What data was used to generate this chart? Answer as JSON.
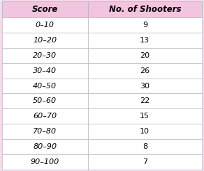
{
  "headers": [
    "Score",
    "No. of Shooters"
  ],
  "rows": [
    [
      "0–10",
      "9"
    ],
    [
      "10–20",
      "13"
    ],
    [
      "20–30",
      "20"
    ],
    [
      "30–40",
      "26"
    ],
    [
      "40–50",
      "30"
    ],
    [
      "50–60",
      "22"
    ],
    [
      "60–70",
      "15"
    ],
    [
      "70–80",
      "10"
    ],
    [
      "80–90",
      "8"
    ],
    [
      "90–100",
      "7"
    ]
  ],
  "header_bg": "#f2c4e0",
  "row_bg": "#ffffff",
  "border_color": "#bbbbbb",
  "header_text_color": "#000000",
  "row_text_color": "#000000",
  "header_fontsize": 8.5,
  "row_fontsize": 8,
  "fig_bg": "#f5dced",
  "col_split": 0.43
}
